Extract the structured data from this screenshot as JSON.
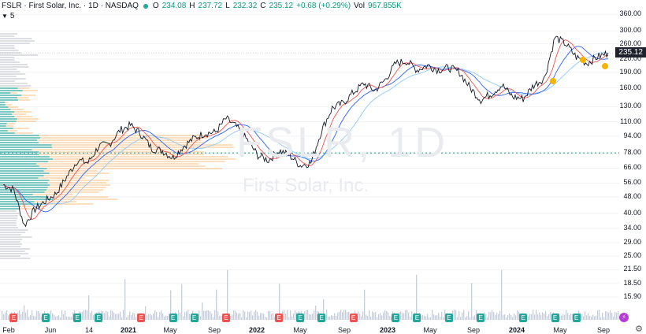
{
  "header": {
    "title": "FSLR · First Solar, Inc. · 1D · NASDAQ",
    "o_label": "O",
    "o_value": "234.08",
    "h_label": "H",
    "h_value": "237.72",
    "l_label": "L",
    "l_value": "232.32",
    "c_label": "C",
    "c_value": "235.12",
    "change": "+0.68 (+0.29%)",
    "vol_label": "Vol",
    "vol_value": "967.855K"
  },
  "indicator_row": {
    "count": "5"
  },
  "watermark": {
    "ticker": "FSLR, 1D",
    "name": "First Solar, Inc."
  },
  "price_tag": "235.12",
  "colors": {
    "up": "#089981",
    "accent_line": "#26a69a",
    "profile_teal": "#26a69a",
    "profile_orange": "#f7c58a",
    "ma_red": "#ef5350",
    "ma_blue": "#2962ff",
    "ma_light": "#90caf9",
    "earnings_green": "#26a69a",
    "earnings_red": "#ef5350"
  },
  "chart_data": {
    "type": "line",
    "title": "FSLR · First Solar, Inc. · 1D · NASDAQ",
    "y_scale": "log",
    "ylim": [
      13.5,
      380
    ],
    "y_ticks": [
      "360.00",
      "300.00",
      "260.00",
      "220.00",
      "190.00",
      "160.00",
      "130.00",
      "110.00",
      "94.00",
      "78.00",
      "66.00",
      "56.00",
      "48.00",
      "40.00",
      "34.00",
      "29.00",
      "25.00",
      "21.50",
      "18.50",
      "15.90"
    ],
    "x_ticks": [
      {
        "label": "Feb",
        "bold": false
      },
      {
        "label": "Jun",
        "bold": false
      },
      {
        "label": "14",
        "bold": false
      },
      {
        "label": "2021",
        "bold": true
      },
      {
        "label": "May",
        "bold": false
      },
      {
        "label": "Sep",
        "bold": false
      },
      {
        "label": "2022",
        "bold": true
      },
      {
        "label": "May",
        "bold": false
      },
      {
        "label": "Sep",
        "bold": false
      },
      {
        "label": "2023",
        "bold": true
      },
      {
        "label": "May",
        "bold": false
      },
      {
        "label": "Sep",
        "bold": false
      },
      {
        "label": "2024",
        "bold": true
      },
      {
        "label": "May",
        "bold": false
      },
      {
        "label": "Sep",
        "bold": false
      }
    ],
    "series": [
      {
        "name": "FSLR",
        "points": [
          [
            "2020-01",
            55
          ],
          [
            "2020-02",
            52
          ],
          [
            "2020-03",
            35
          ],
          [
            "2020-04",
            42
          ],
          [
            "2020-05",
            46
          ],
          [
            "2020-06",
            50
          ],
          [
            "2020-07",
            60
          ],
          [
            "2020-08",
            72
          ],
          [
            "2020-09",
            70
          ],
          [
            "2020-10",
            84
          ],
          [
            "2020-11",
            86
          ],
          [
            "2020-12",
            100
          ],
          [
            "2021-01",
            106
          ],
          [
            "2021-02",
            96
          ],
          [
            "2021-03",
            82
          ],
          [
            "2021-04",
            80
          ],
          [
            "2021-05",
            74
          ],
          [
            "2021-06",
            84
          ],
          [
            "2021-07",
            92
          ],
          [
            "2021-08",
            97
          ],
          [
            "2021-09",
            98
          ],
          [
            "2021-10",
            114
          ],
          [
            "2021-11",
            104
          ],
          [
            "2021-12",
            90
          ],
          [
            "2022-01",
            76
          ],
          [
            "2022-02",
            72
          ],
          [
            "2022-03",
            80
          ],
          [
            "2022-04",
            76
          ],
          [
            "2022-05",
            68
          ],
          [
            "2022-06",
            70
          ],
          [
            "2022-07",
            100
          ],
          [
            "2022-08",
            128
          ],
          [
            "2022-09",
            135
          ],
          [
            "2022-10",
            152
          ],
          [
            "2022-11",
            168
          ],
          [
            "2022-12",
            155
          ],
          [
            "2023-01",
            175
          ],
          [
            "2023-02",
            210
          ],
          [
            "2023-03",
            215
          ],
          [
            "2023-04",
            195
          ],
          [
            "2023-05",
            205
          ],
          [
            "2023-06",
            195
          ],
          [
            "2023-07",
            200
          ],
          [
            "2023-08",
            190
          ],
          [
            "2023-09",
            160
          ],
          [
            "2023-10",
            140
          ],
          [
            "2023-11",
            150
          ],
          [
            "2023-12",
            165
          ],
          [
            "2024-01",
            145
          ],
          [
            "2024-02",
            142
          ],
          [
            "2024-03",
            165
          ],
          [
            "2024-04",
            178
          ],
          [
            "2024-05",
            280
          ],
          [
            "2024-06",
            260
          ],
          [
            "2024-07",
            225
          ],
          [
            "2024-08",
            210
          ],
          [
            "2024-09",
            225
          ],
          [
            "2024-10",
            235
          ]
        ]
      },
      {
        "name": "MA fast"
      },
      {
        "name": "MA mid"
      },
      {
        "name": "MA slow"
      }
    ],
    "horizontal_line": 78,
    "last_price": 235.12,
    "earnings": [
      {
        "date": "2020-02",
        "type": "E",
        "color": "red"
      },
      {
        "date": "2020-05",
        "type": "E",
        "color": "green"
      },
      {
        "date": "2020-08",
        "type": "E",
        "color": "green"
      },
      {
        "date": "2020-10",
        "type": "E",
        "color": "green"
      },
      {
        "date": "2021-02",
        "type": "E",
        "color": "red"
      },
      {
        "date": "2021-05",
        "type": "E",
        "color": "green"
      },
      {
        "date": "2021-07",
        "type": "E",
        "color": "green"
      },
      {
        "date": "2021-10",
        "type": "E",
        "color": "red"
      },
      {
        "date": "2022-03",
        "type": "E",
        "color": "red"
      },
      {
        "date": "2022-05",
        "type": "E",
        "color": "green"
      },
      {
        "date": "2022-07",
        "type": "E",
        "color": "green"
      },
      {
        "date": "2022-10",
        "type": "E",
        "color": "red"
      },
      {
        "date": "2023-02",
        "type": "E",
        "color": "green"
      },
      {
        "date": "2023-04",
        "type": "E",
        "color": "green"
      },
      {
        "date": "2023-07",
        "type": "E",
        "color": "green"
      },
      {
        "date": "2023-10",
        "type": "E",
        "color": "green"
      },
      {
        "date": "2024-02",
        "type": "E",
        "color": "green"
      },
      {
        "date": "2024-05",
        "type": "E",
        "color": "green"
      },
      {
        "date": "2024-07",
        "type": "E",
        "color": "green"
      }
    ]
  }
}
